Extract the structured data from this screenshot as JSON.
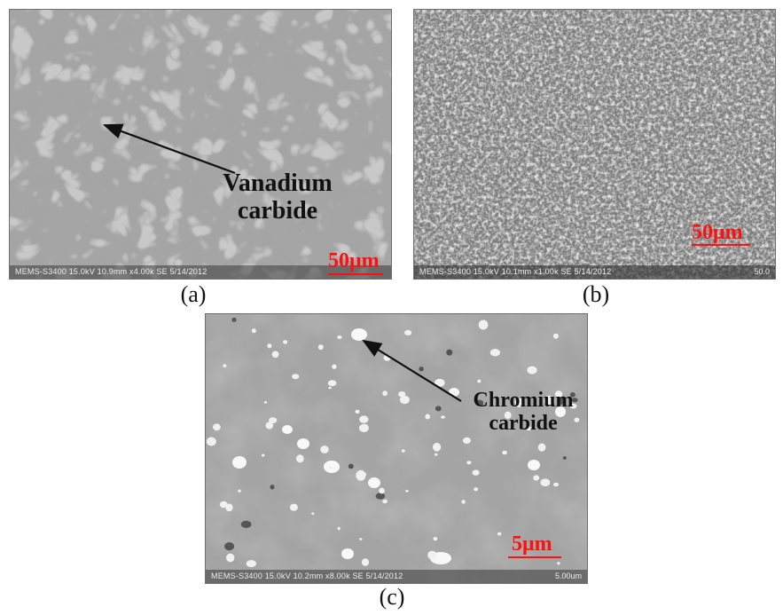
{
  "panels": {
    "a": {
      "caption": "(a)",
      "annotation_line1": "Vanadium",
      "annotation_line2": "carbide",
      "scale_label": "50μm",
      "metadata": "MEMS-S3400 15.0kV 10.9mm x4.00k SE 5/14/2012"
    },
    "b": {
      "caption": "(b)",
      "scale_label": "50μm",
      "metadata": "MEMS-S3400 15.0kV 10.1mm x1.00k SE 5/14/2012",
      "metadata_right": "50.0"
    },
    "c": {
      "caption": "(c)",
      "annotation_line1": "Chromium",
      "annotation_line2": "carbide",
      "scale_label": "5μm",
      "metadata": "MEMS-S3400 15.0kV 10.2mm x8.00k SE 5/14/2012",
      "metadata_right": "5.00um"
    }
  },
  "colors": {
    "scale_text": "#ff1010",
    "annotation_text": "#111111",
    "background": "#ffffff"
  }
}
